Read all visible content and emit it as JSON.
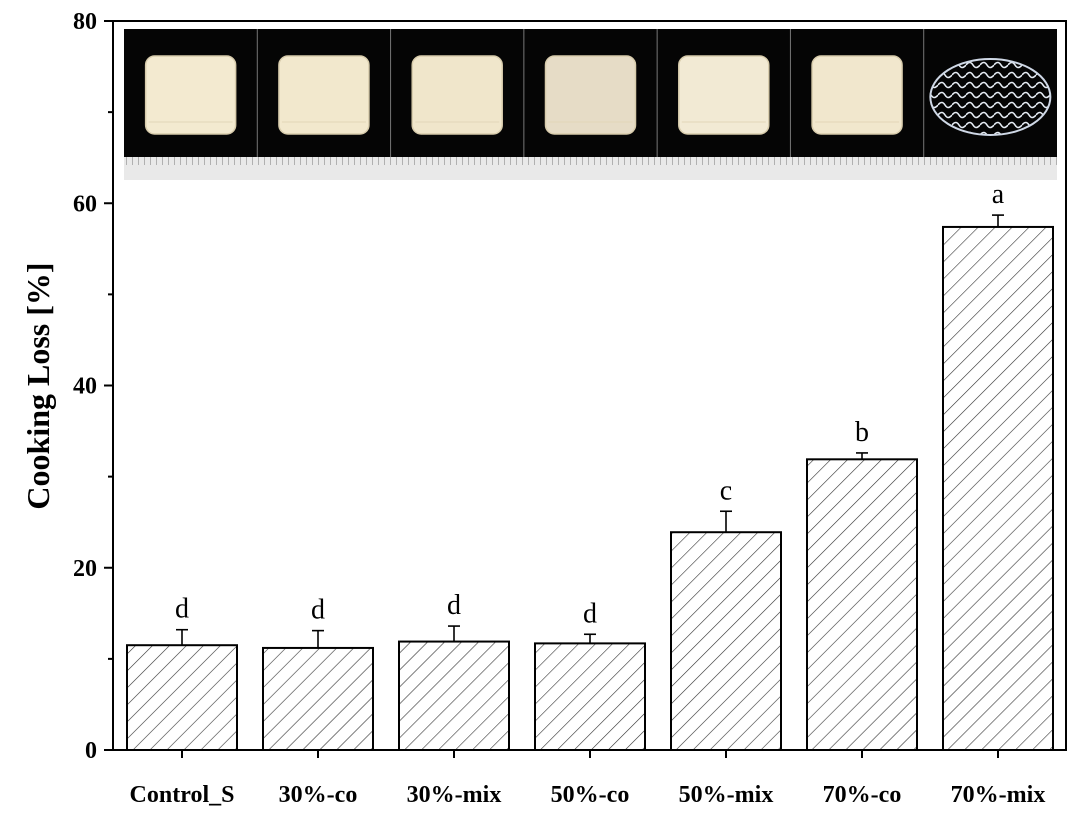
{
  "chart_data": {
    "type": "bar",
    "categories": [
      "Control_S",
      "30%-co",
      "30%-mix",
      "50%-co",
      "50%-mix",
      "70%-co",
      "70%-mix"
    ],
    "values": [
      11.5,
      11.2,
      11.9,
      11.7,
      23.9,
      31.9,
      57.4
    ],
    "errors": [
      1.7,
      1.9,
      1.7,
      1.0,
      2.3,
      0.7,
      1.3
    ],
    "significance": [
      "d",
      "d",
      "d",
      "d",
      "c",
      "b",
      "a"
    ],
    "ylabel": "Cooking Loss [%]",
    "xlabel": "",
    "ylim": [
      0,
      80
    ],
    "yticks": [
      0,
      20,
      40,
      60,
      80
    ],
    "grid": false,
    "bar_fill": "diagonal-hatch",
    "colors": {
      "bar_edge": "#000000",
      "hatch": "#000000",
      "photo_strip_bg": "#050505",
      "ruler": "#e8e8e8"
    },
    "photo_strip": {
      "description_items": [
        "sample-block",
        "sample-block",
        "sample-block",
        "sample-block",
        "sample-block",
        "sample-block",
        "fibrous-strands"
      ]
    }
  }
}
